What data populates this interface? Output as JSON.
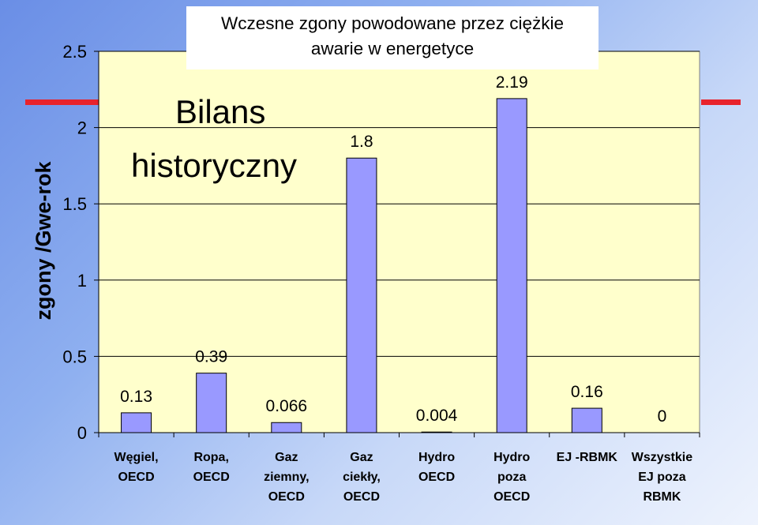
{
  "title": {
    "line1": "Wczesne zgony powodowane przez ciężkie",
    "line2": "awarie w energetyce"
  },
  "overlay": {
    "line1": "Bilans",
    "line2": "historyczny"
  },
  "chart_data": {
    "type": "bar",
    "ylabel": "zgony /Gwe-rok",
    "ylim": [
      0,
      2.5
    ],
    "yticks": [
      "0",
      "0.5",
      "1",
      "1.5",
      "2",
      "2.5"
    ],
    "grid": true,
    "categories": [
      [
        "Węgiel,",
        "OECD"
      ],
      [
        "Ropa,",
        "OECD"
      ],
      [
        "Gaz",
        "ziemny,",
        "OECD"
      ],
      [
        "Gaz",
        "ciekły,",
        "OECD"
      ],
      [
        "Hydro",
        "OECD"
      ],
      [
        "Hydro",
        "poza",
        "OECD"
      ],
      [
        "EJ -RBMK"
      ],
      [
        "Wszystkie",
        "EJ poza",
        "RBMK"
      ]
    ],
    "values": [
      0.13,
      0.39,
      0.066,
      1.8,
      0.004,
      2.19,
      0.16,
      0
    ],
    "data_labels": [
      "0.13",
      "0.39",
      "0.066",
      "1.8",
      "0.004",
      "2.19",
      "0.16",
      "0"
    ],
    "colors": {
      "plot_bg": "#ffffcc",
      "bar": "#9999ff",
      "accent": "#e8232c"
    }
  }
}
